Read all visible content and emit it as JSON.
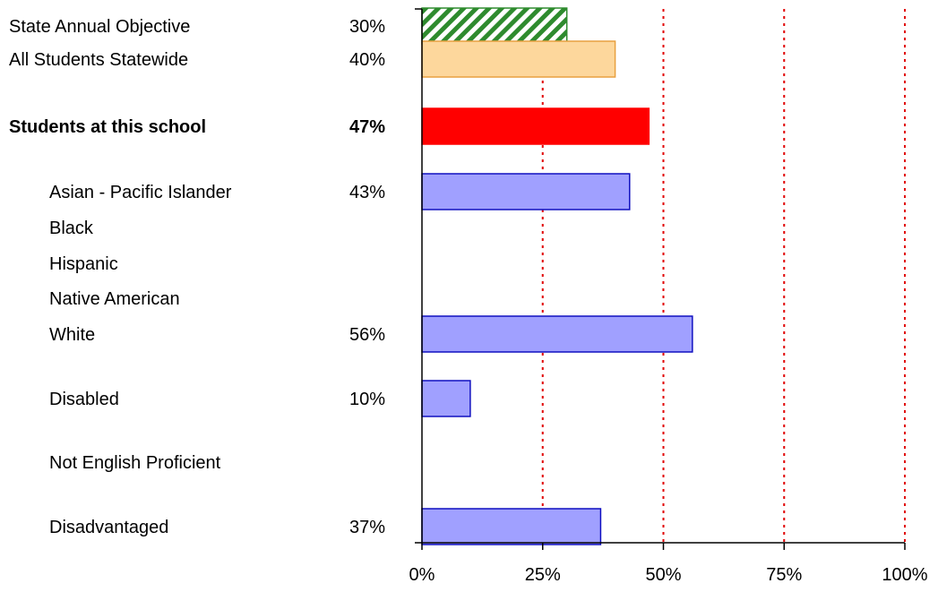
{
  "chart_data": {
    "type": "bar",
    "orientation": "horizontal",
    "title": "",
    "xlabel": "",
    "ylabel": "",
    "xlim": [
      0,
      100
    ],
    "x_ticks": [
      "0%",
      "25%",
      "50%",
      "75%",
      "100%"
    ],
    "x_tick_values": [
      0,
      25,
      50,
      75,
      100
    ],
    "gridlines": {
      "style": "dotted",
      "color": "#e00000",
      "at": [
        25,
        50,
        75,
        100
      ]
    },
    "legend": "none",
    "rows": [
      {
        "label": "State Annual Objective",
        "value": 30,
        "value_label": "30%",
        "style": "hatched",
        "fill": "#2e8b2e",
        "stroke": "#2e8b2e",
        "indent": false,
        "bold": false
      },
      {
        "label": "All Students Statewide",
        "value": 40,
        "value_label": "40%",
        "style": "solid",
        "fill": "#fdd79c",
        "stroke": "#e8a040",
        "indent": false,
        "bold": false
      },
      {
        "label": "Students at this school",
        "value": 47,
        "value_label": "47%",
        "style": "solid",
        "fill": "#ff0000",
        "stroke": "#ff0000",
        "indent": false,
        "bold": true
      },
      {
        "label": "Asian - Pacific Islander",
        "value": 43,
        "value_label": "43%",
        "style": "solid",
        "fill": "#a0a0ff",
        "stroke": "#1010c0",
        "indent": true,
        "bold": false
      },
      {
        "label": "Black",
        "value": null,
        "value_label": "",
        "style": "solid",
        "fill": "#a0a0ff",
        "stroke": "#1010c0",
        "indent": true,
        "bold": false
      },
      {
        "label": "Hispanic",
        "value": null,
        "value_label": "",
        "style": "solid",
        "fill": "#a0a0ff",
        "stroke": "#1010c0",
        "indent": true,
        "bold": false
      },
      {
        "label": "Native American",
        "value": null,
        "value_label": "",
        "style": "solid",
        "fill": "#a0a0ff",
        "stroke": "#1010c0",
        "indent": true,
        "bold": false
      },
      {
        "label": "White",
        "value": 56,
        "value_label": "56%",
        "style": "solid",
        "fill": "#a0a0ff",
        "stroke": "#1010c0",
        "indent": true,
        "bold": false
      },
      {
        "label": "Disabled",
        "value": 10,
        "value_label": "10%",
        "style": "solid",
        "fill": "#a0a0ff",
        "stroke": "#1010c0",
        "indent": true,
        "bold": false
      },
      {
        "label": "Not English Proficient",
        "value": null,
        "value_label": "",
        "style": "solid",
        "fill": "#a0a0ff",
        "stroke": "#1010c0",
        "indent": true,
        "bold": false
      },
      {
        "label": "Disadvantaged",
        "value": 37,
        "value_label": "37%",
        "style": "solid",
        "fill": "#a0a0ff",
        "stroke": "#1010c0",
        "indent": true,
        "bold": false
      }
    ]
  }
}
